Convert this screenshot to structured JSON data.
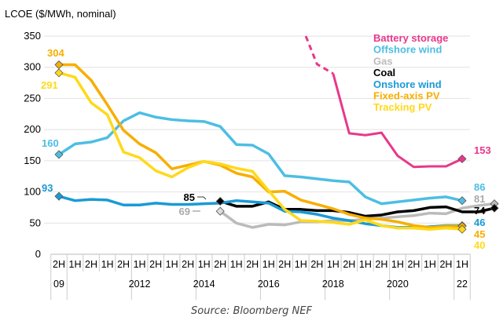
{
  "chart_data": {
    "type": "line",
    "ylabel": "LCOE ($/MWh, nominal)",
    "ylim": [
      0,
      350
    ],
    "yticks": [
      0,
      50,
      100,
      150,
      200,
      250,
      300,
      350
    ],
    "grid": true,
    "legend_position": "top-right",
    "x": [
      "2H09",
      "1H10",
      "2H10",
      "1H11",
      "2H11",
      "1H12",
      "2H12",
      "1H13",
      "2H13",
      "1H14",
      "2H14",
      "1H15",
      "2H15",
      "1H16",
      "2H16",
      "1H17",
      "2H17",
      "1H18",
      "2H18",
      "1H19",
      "2H19",
      "1H20",
      "2H20",
      "1H21",
      "2H21",
      "1H22"
    ],
    "x_half_labels": [
      "2H",
      "1H",
      "2H",
      "1H",
      "2H",
      "1H",
      "2H",
      "1H",
      "2H",
      "1H",
      "2H",
      "1H",
      "2H",
      "1H",
      "2H",
      "1H",
      "2H",
      "1H",
      "2H",
      "1H",
      "2H",
      "1H",
      "2H",
      "1H",
      "2H",
      "1H"
    ],
    "x_year_labels": [
      {
        "index": 0,
        "label": "09"
      },
      {
        "index": 5,
        "label": "2012"
      },
      {
        "index": 9,
        "label": "2014"
      },
      {
        "index": 13,
        "label": "2016"
      },
      {
        "index": 17,
        "label": "2018"
      },
      {
        "index": 21,
        "label": "2020"
      },
      {
        "index": 25,
        "label": "22"
      }
    ],
    "series": [
      {
        "name": "Battery storage",
        "color": "#E8388A",
        "start_index": 15,
        "dashed_until_index": 17,
        "values": [
          370,
          305,
          290,
          194,
          191,
          195,
          158,
          140,
          141,
          141,
          153
        ],
        "end_label": "153"
      },
      {
        "name": "Offshore wind",
        "color": "#4DBEE3",
        "start_index": 0,
        "values": [
          160,
          177,
          180,
          187,
          214,
          227,
          220,
          216,
          214,
          213,
          205,
          176,
          175,
          161,
          126,
          124,
          121,
          118,
          116,
          92,
          81,
          84,
          87,
          90,
          92,
          86
        ],
        "start_label": "160",
        "end_label": "86"
      },
      {
        "name": "Gas",
        "color": "#BBBBBB",
        "start_index": 10,
        "values": [
          69,
          50,
          43,
          48,
          47,
          52,
          52,
          54,
          54,
          56,
          58,
          60,
          62,
          66,
          65,
          74,
          78,
          81
        ],
        "start_label": "69",
        "end_label": "81"
      },
      {
        "name": "Coal",
        "color": "#000000",
        "start_index": 10,
        "values": [
          85,
          77,
          77,
          84,
          72,
          72,
          70,
          70,
          67,
          61,
          63,
          68,
          70,
          75,
          76,
          68,
          68,
          74
        ],
        "start_label": "85",
        "end_label": "74"
      },
      {
        "name": "Onshore wind",
        "color": "#1A9AD6",
        "start_index": 0,
        "values": [
          93,
          86,
          88,
          87,
          79,
          79,
          82,
          80,
          80,
          81,
          82,
          86,
          84,
          82,
          69,
          68,
          64,
          58,
          54,
          49,
          46,
          43,
          43,
          44,
          46,
          46
        ],
        "start_label": "93",
        "end_label": "46"
      },
      {
        "name": "Fixed-axis PV",
        "color": "#F7AE00",
        "start_index": 0,
        "values": [
          304,
          304,
          279,
          240,
          199,
          177,
          163,
          137,
          143,
          149,
          143,
          130,
          124,
          100,
          101,
          87,
          80,
          73,
          64,
          58,
          56,
          52,
          46,
          43,
          45,
          45
        ],
        "start_label": "304",
        "end_label": "45"
      },
      {
        "name": "Tracking PV",
        "color": "#FFD91A",
        "start_index": 0,
        "values": [
          291,
          284,
          243,
          224,
          164,
          155,
          134,
          124,
          139,
          149,
          145,
          138,
          133,
          102,
          72,
          54,
          53,
          51,
          48,
          55,
          46,
          42,
          42,
          40,
          42,
          40
        ],
        "start_label": "291",
        "end_label": "40"
      }
    ]
  },
  "source": "Source: Bloomberg NEF"
}
